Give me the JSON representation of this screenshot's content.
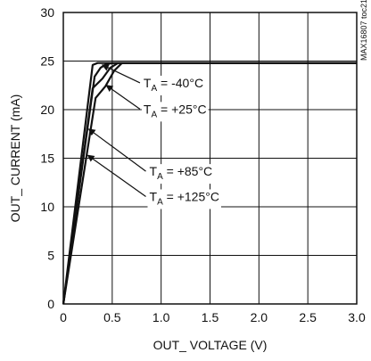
{
  "chart_data": {
    "type": "line",
    "xlabel": "OUT_ VOLTAGE (V)",
    "ylabel": "OUT_ CURRENT (mA)",
    "xlim": [
      0,
      3.0
    ],
    "ylim": [
      0,
      30
    ],
    "grid": true,
    "x_ticks": [
      "0",
      "0.5",
      "1.0",
      "1.5",
      "2.0",
      "2.5",
      "3.0"
    ],
    "y_ticks": [
      "0",
      "5",
      "10",
      "15",
      "20",
      "25",
      "30"
    ],
    "series": [
      {
        "x": [
          0,
          0.3,
          0.35,
          0.4,
          0.5,
          3.0
        ],
        "y": [
          0,
          24.6,
          24.8,
          24.8,
          24.8,
          24.8
        ]
      },
      {
        "x": [
          0,
          0.32,
          0.38,
          0.44,
          0.52,
          3.0
        ],
        "y": [
          0,
          23.4,
          24.3,
          24.7,
          24.8,
          24.8
        ]
      },
      {
        "x": [
          0,
          0.3,
          0.4,
          0.48,
          0.56,
          3.0
        ],
        "y": [
          0,
          22.2,
          23.2,
          24.3,
          24.8,
          24.8
        ]
      },
      {
        "x": [
          0,
          0.33,
          0.43,
          0.52,
          0.6,
          3.0
        ],
        "y": [
          0,
          21.2,
          22.4,
          24.0,
          24.8,
          24.8
        ]
      }
    ],
    "annotations": [
      {
        "label": "T",
        "sub": "A",
        "text": " = -40°C",
        "x": 0.82,
        "y": 22.3,
        "arrow_to": [
          0.4,
          24.6
        ]
      },
      {
        "label": "T",
        "sub": "A",
        "text": " = +25°C",
        "x": 0.82,
        "y": 19.6,
        "arrow_to": [
          0.44,
          22.5
        ]
      },
      {
        "label": "T",
        "sub": "A",
        "text": " = +85°C",
        "x": 0.88,
        "y": 13.2,
        "arrow_to": [
          0.26,
          18.0
        ]
      },
      {
        "label": "T",
        "sub": "A",
        "text": " = +125°C",
        "x": 0.88,
        "y": 10.6,
        "arrow_to": [
          0.25,
          15.3
        ]
      }
    ],
    "watermark": "MAX16807 toc21"
  }
}
